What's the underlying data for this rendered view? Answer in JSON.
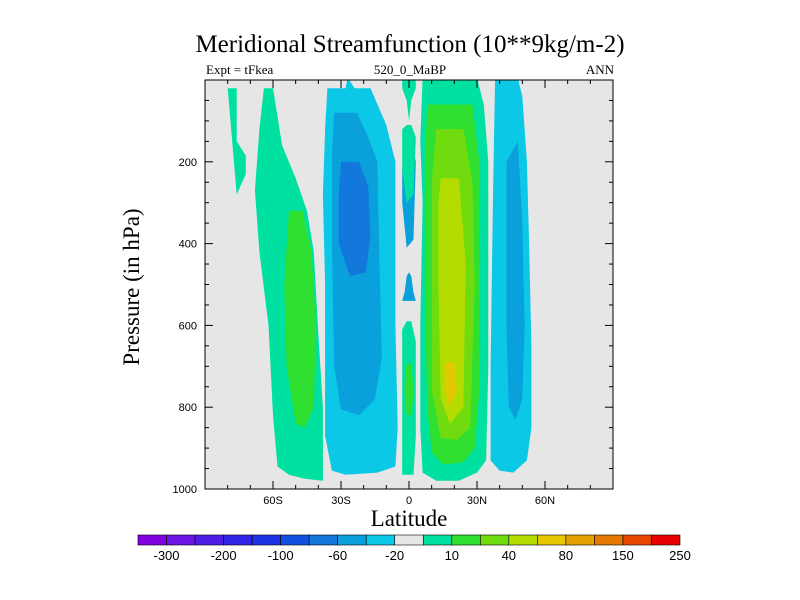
{
  "chart_data": {
    "type": "heatmap",
    "title": "Meridional Streamfunction (10**9kg/m-2)",
    "subtitle_left": "Expt = tFkea",
    "subtitle_center": "520_0_MaBP",
    "subtitle_right": "ANN",
    "xlabel": "Latitude",
    "ylabel": "Pressure (in hPa)",
    "xlim": [
      -90,
      90
    ],
    "ylim": [
      1000,
      0
    ],
    "x_ticks": [
      {
        "value": -60,
        "label": "60S"
      },
      {
        "value": -30,
        "label": "30S"
      },
      {
        "value": 0,
        "label": "0"
      },
      {
        "value": 30,
        "label": "30N"
      },
      {
        "value": 60,
        "label": "60N"
      }
    ],
    "y_ticks": [
      {
        "value": 200,
        "label": "200"
      },
      {
        "value": 400,
        "label": "400"
      },
      {
        "value": 600,
        "label": "600"
      },
      {
        "value": 800,
        "label": "800"
      },
      {
        "value": 1000,
        "label": "1000"
      }
    ],
    "background_color": "#e6e6e6",
    "colorbar": {
      "colors": [
        "#8000e0",
        "#6a14e6",
        "#4e1ee8",
        "#3224e6",
        "#1e32e6",
        "#1450e0",
        "#1278dc",
        "#0aa0dc",
        "#0ac8e6",
        "#e6e6e6",
        "#00e0a0",
        "#30e030",
        "#70dc10",
        "#b4dc00",
        "#e6c800",
        "#e6a000",
        "#e67800",
        "#e64600",
        "#e60000"
      ],
      "labels": [
        "-300",
        "-200",
        "-100",
        "-60",
        "-20",
        "10",
        "40",
        "80",
        "150",
        "250"
      ]
    },
    "regions": [
      {
        "fill": "#00e0a0",
        "points": [
          [
            -80,
            20
          ],
          [
            -76,
            20
          ],
          [
            -76,
            150
          ],
          [
            -72,
            185
          ],
          [
            -72,
            230
          ],
          [
            -76,
            280
          ]
        ]
      },
      {
        "fill": "#00e0a0",
        "points": [
          [
            -64,
            20
          ],
          [
            -60,
            20
          ],
          [
            -56,
            160
          ],
          [
            -50,
            240
          ],
          [
            -45,
            320
          ],
          [
            -42,
            420
          ],
          [
            -40,
            620
          ],
          [
            -38,
            800
          ],
          [
            -38,
            980
          ],
          [
            -46,
            975
          ],
          [
            -53,
            965
          ],
          [
            -58,
            945
          ],
          [
            -60,
            820
          ],
          [
            -62,
            600
          ],
          [
            -66,
            420
          ],
          [
            -68,
            270
          ],
          [
            -66,
            120
          ]
        ]
      },
      {
        "fill": "#30e030",
        "points": [
          [
            -53,
            320
          ],
          [
            -47,
            320
          ],
          [
            -43,
            420
          ],
          [
            -41,
            600
          ],
          [
            -42,
            800
          ],
          [
            -46,
            850
          ],
          [
            -50,
            840
          ],
          [
            -54,
            700
          ],
          [
            -55,
            500
          ]
        ]
      },
      {
        "fill": "#0ac8e6",
        "points": [
          [
            -36,
            20
          ],
          [
            -28,
            20
          ],
          [
            -27,
            -5
          ],
          [
            -24,
            20
          ],
          [
            -17,
            20
          ],
          [
            -10,
            110
          ],
          [
            -6,
            200
          ],
          [
            -6,
            600
          ],
          [
            -5,
            850
          ],
          [
            -6,
            945
          ],
          [
            -14,
            960
          ],
          [
            -28,
            965
          ],
          [
            -34,
            955
          ],
          [
            -37,
            870
          ],
          [
            -37,
            500
          ],
          [
            -38,
            280
          ],
          [
            -37,
            120
          ]
        ]
      },
      {
        "fill": "#0aa0dc",
        "points": [
          [
            -33,
            80
          ],
          [
            -23,
            80
          ],
          [
            -18,
            140
          ],
          [
            -14,
            200
          ],
          [
            -13,
            450
          ],
          [
            -12,
            680
          ],
          [
            -15,
            780
          ],
          [
            -22,
            820
          ],
          [
            -30,
            805
          ],
          [
            -33,
            700
          ],
          [
            -34,
            400
          ],
          [
            -34,
            180
          ]
        ]
      },
      {
        "fill": "#1278dc",
        "points": [
          [
            -30,
            200
          ],
          [
            -22,
            200
          ],
          [
            -18,
            260
          ],
          [
            -17,
            380
          ],
          [
            -19,
            470
          ],
          [
            -26,
            480
          ],
          [
            -31,
            400
          ],
          [
            -31,
            280
          ]
        ]
      },
      {
        "fill": "#0aa0dc",
        "points": [
          [
            -3,
            220
          ],
          [
            -1,
            180
          ],
          [
            1,
            150
          ],
          [
            3,
            200
          ],
          [
            2,
            390
          ],
          [
            -1,
            410
          ],
          [
            -3,
            300
          ]
        ]
      },
      {
        "fill": "#0aa0dc",
        "points": [
          [
            -3,
            540
          ],
          [
            -2,
            520
          ],
          [
            -1,
            480
          ],
          [
            0,
            470
          ],
          [
            1,
            480
          ],
          [
            2,
            520
          ],
          [
            3,
            540
          ]
        ]
      },
      {
        "fill": "#00e0a0",
        "points": [
          [
            -3,
            -5
          ],
          [
            3,
            -5
          ],
          [
            3,
            20
          ],
          [
            1,
            50
          ],
          [
            0,
            100
          ],
          [
            -1,
            50
          ],
          [
            -3,
            20
          ]
        ]
      },
      {
        "fill": "#00e0a0",
        "points": [
          [
            -3,
            120
          ],
          [
            -1,
            110
          ],
          [
            1,
            110
          ],
          [
            3,
            140
          ],
          [
            2,
            280
          ],
          [
            -1,
            300
          ],
          [
            -3,
            220
          ]
        ]
      },
      {
        "fill": "#00e0a0",
        "points": [
          [
            -3,
            610
          ],
          [
            -1,
            590
          ],
          [
            1,
            590
          ],
          [
            3,
            640
          ],
          [
            3,
            870
          ],
          [
            2,
            965
          ],
          [
            -3,
            965
          ],
          [
            -3,
            850
          ]
        ]
      },
      {
        "fill": "#30e030",
        "points": [
          [
            -1.5,
            700
          ],
          [
            1,
            690
          ],
          [
            2,
            760
          ],
          [
            1,
            820
          ],
          [
            -1,
            820
          ],
          [
            -2,
            760
          ]
        ]
      },
      {
        "fill": "#00e0a0",
        "points": [
          [
            6,
            -5
          ],
          [
            30,
            -5
          ],
          [
            33,
            60
          ],
          [
            35,
            200
          ],
          [
            35,
            700
          ],
          [
            34,
            930
          ],
          [
            30,
            960
          ],
          [
            22,
            980
          ],
          [
            12,
            980
          ],
          [
            6,
            960
          ],
          [
            5,
            850
          ],
          [
            5,
            600
          ],
          [
            6,
            300
          ],
          [
            5,
            150
          ]
        ]
      },
      {
        "fill": "#30e030",
        "points": [
          [
            8,
            60
          ],
          [
            28,
            60
          ],
          [
            31,
            200
          ],
          [
            31,
            760
          ],
          [
            29,
            900
          ],
          [
            24,
            935
          ],
          [
            15,
            940
          ],
          [
            10,
            910
          ],
          [
            8,
            800
          ],
          [
            7,
            500
          ],
          [
            7,
            200
          ]
        ]
      },
      {
        "fill": "#70dc10",
        "points": [
          [
            12,
            120
          ],
          [
            24,
            120
          ],
          [
            28,
            250
          ],
          [
            29,
            500
          ],
          [
            27,
            850
          ],
          [
            21,
            880
          ],
          [
            14,
            875
          ],
          [
            10,
            760
          ],
          [
            10,
            500
          ],
          [
            10,
            250
          ]
        ]
      },
      {
        "fill": "#b4dc00",
        "points": [
          [
            14,
            240
          ],
          [
            22,
            240
          ],
          [
            25,
            450
          ],
          [
            24,
            800
          ],
          [
            18,
            840
          ],
          [
            14,
            780
          ],
          [
            13,
            500
          ],
          [
            13,
            300
          ]
        ]
      },
      {
        "fill": "#e6c800",
        "points": [
          [
            16,
            690
          ],
          [
            20,
            690
          ],
          [
            21,
            760
          ],
          [
            18,
            800
          ],
          [
            16,
            760
          ]
        ]
      },
      {
        "fill": "#0ac8e6",
        "points": [
          [
            38,
            -5
          ],
          [
            48,
            -5
          ],
          [
            50,
            40
          ],
          [
            52,
            200
          ],
          [
            53,
            400
          ],
          [
            54,
            650
          ],
          [
            54,
            850
          ],
          [
            52,
            930
          ],
          [
            46,
            960
          ],
          [
            40,
            955
          ],
          [
            36,
            930
          ],
          [
            36,
            700
          ],
          [
            37,
            300
          ]
        ]
      },
      {
        "fill": "#0aa0dc",
        "points": [
          [
            43,
            200
          ],
          [
            48,
            150
          ],
          [
            50,
            350
          ],
          [
            51,
            600
          ],
          [
            50,
            780
          ],
          [
            47,
            830
          ],
          [
            44,
            800
          ],
          [
            43,
            600
          ],
          [
            43,
            350
          ]
        ]
      }
    ]
  }
}
